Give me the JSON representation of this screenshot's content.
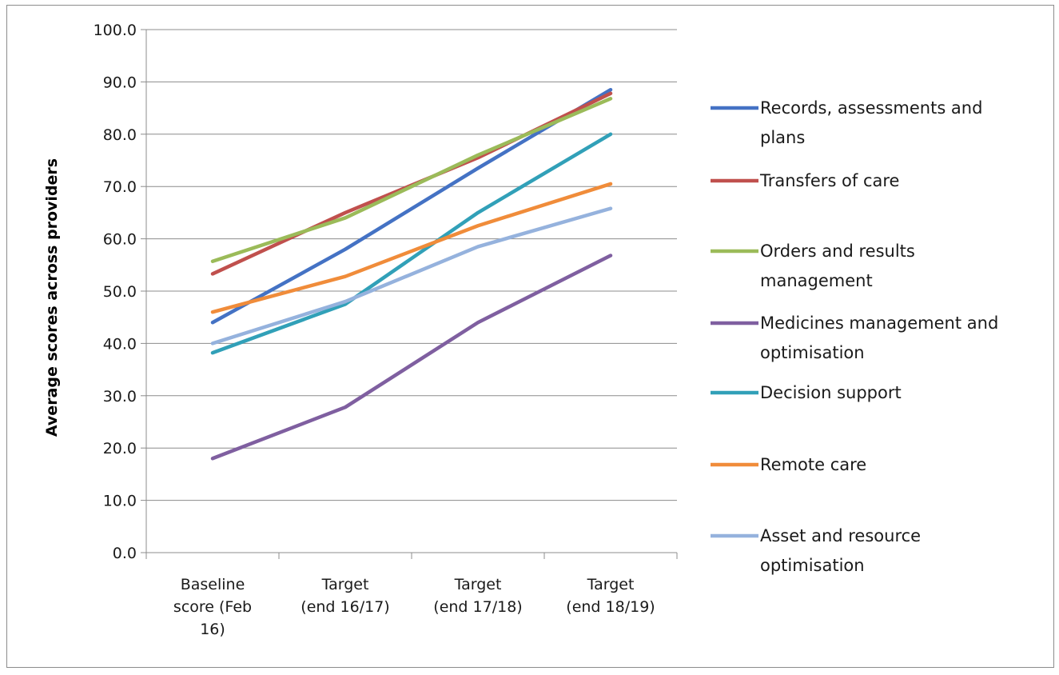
{
  "chart_data": {
    "type": "line",
    "title": "",
    "xlabel": "",
    "ylabel": "Average scores across  providers",
    "ylim": [
      0,
      100
    ],
    "ytick_step": 10,
    "ytick_format": "0.0",
    "grid": "horizontal",
    "legend_position": "right",
    "categories": [
      [
        "Baseline",
        "score (Feb",
        "16)"
      ],
      [
        "Target",
        "(end 16/17)"
      ],
      [
        "Target",
        "(end 17/18)"
      ],
      [
        "Target",
        "(end 18/19)"
      ]
    ],
    "series": [
      {
        "name": [
          "Records, assessments and",
          "plans"
        ],
        "color": "#4472c4",
        "values": [
          44.0,
          58.0,
          73.5,
          88.5
        ]
      },
      {
        "name": [
          "Transfers of care"
        ],
        "color": "#c0504d",
        "values": [
          53.3,
          65.0,
          75.5,
          87.8
        ]
      },
      {
        "name": [
          "Orders and results",
          "management"
        ],
        "color": "#9bbb59",
        "values": [
          55.7,
          64.0,
          76.0,
          86.8
        ]
      },
      {
        "name": [
          "Medicines management and",
          "optimisation"
        ],
        "color": "#7f5fa0",
        "values": [
          18.0,
          27.8,
          44.0,
          56.8
        ]
      },
      {
        "name": [
          "Decision support"
        ],
        "color": "#31a0b8",
        "values": [
          38.2,
          47.5,
          65.0,
          80.0
        ]
      },
      {
        "name": [
          "Remote care"
        ],
        "color": "#f08c3a",
        "values": [
          46.0,
          52.8,
          62.5,
          70.5
        ]
      },
      {
        "name": [
          "Asset and resource",
          "optimisation"
        ],
        "color": "#95b2dd",
        "values": [
          40.0,
          48.0,
          58.5,
          65.8
        ]
      }
    ]
  }
}
